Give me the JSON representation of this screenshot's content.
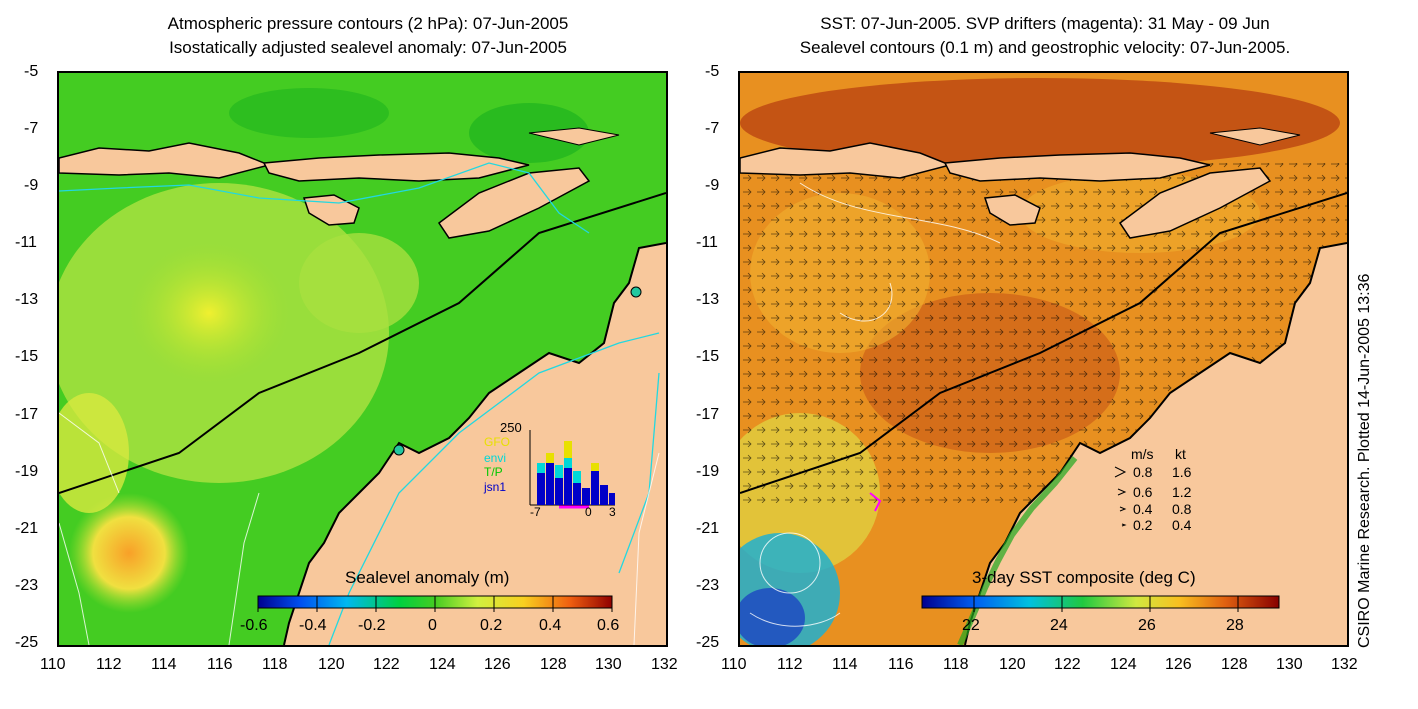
{
  "left_panel": {
    "title_line1": "Atmospheric pressure contours (2 hPa): 07-Jun-2005",
    "title_line2": "Isostatically adjusted sealevel anomaly: 07-Jun-2005",
    "colorbar": {
      "title": "Sealevel anomaly (m)",
      "ticks": [
        "-0.6",
        "-0.4",
        "-0.2",
        "0",
        "0.2",
        "0.4",
        "0.6"
      ]
    },
    "inset": {
      "ymax": "250",
      "legend": [
        {
          "label": "GFO",
          "color": "#e8e000"
        },
        {
          "label": "envi",
          "color": "#00d8d8"
        },
        {
          "label": "T/P",
          "color": "#00c800"
        },
        {
          "label": "jsn1",
          "color": "#0000c8"
        }
      ],
      "xticks": [
        "-7",
        "0",
        "3"
      ]
    }
  },
  "right_panel": {
    "title_line1": "SST: 07-Jun-2005. SVP drifters (magenta): 31 May - 09 Jun",
    "title_line2": "Sealevel contours (0.1 m) and geostrophic velocity: 07-Jun-2005.",
    "colorbar": {
      "title": "3-day SST composite (deg C)",
      "ticks": [
        "22",
        "24",
        "26",
        "28"
      ]
    },
    "velocity_legend": {
      "header_ms": "m/s",
      "header_kt": "kt",
      "rows": [
        {
          "ms": "0.8",
          "kt": "1.6"
        },
        {
          "ms": "0.6",
          "kt": "1.2"
        },
        {
          "ms": "0.4",
          "kt": "0.8"
        },
        {
          "ms": "0.2",
          "kt": "0.4"
        }
      ]
    }
  },
  "y_ticks": [
    "-5",
    "-7",
    "-9",
    "-11",
    "-13",
    "-15",
    "-17",
    "-19",
    "-21",
    "-23",
    "-25"
  ],
  "x_ticks": [
    "110",
    "112",
    "114",
    "116",
    "118",
    "120",
    "122",
    "124",
    "126",
    "128",
    "130",
    "132"
  ],
  "credit": "CSIRO Marine Research. Plotted 14-Jun-2005 13:36",
  "colors": {
    "land": "#f8c89c",
    "sea_green": "#33cc33",
    "sst_orange": "#e89020",
    "coast": "#000000"
  }
}
